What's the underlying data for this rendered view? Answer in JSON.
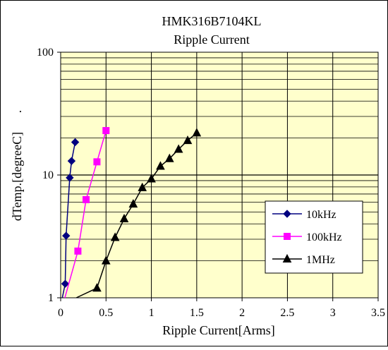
{
  "chart_data": {
    "type": "line",
    "title": "HMK316B7104KL",
    "subtitle": "Ripple Current",
    "xlabel": "Ripple Current[Arms]",
    "ylabel": "dTemp.[degreeC]",
    "ylabel_suffix": ".",
    "xlim": [
      0,
      3.5
    ],
    "ylim": [
      1,
      100
    ],
    "yscale": "log",
    "x_ticks": [
      "0",
      "0.5",
      "1",
      "1.5",
      "2",
      "2.5",
      "3",
      "3.5"
    ],
    "y_ticks": [
      "1",
      "10",
      "100"
    ],
    "grid": true,
    "plot_background": "#ffffcc",
    "legend_position": "bottom-right",
    "series": [
      {
        "name": "10kHz",
        "color": "#000080",
        "marker": "diamond",
        "x": [
          0.05,
          0.06,
          0.1,
          0.12,
          0.16
        ],
        "y": [
          1.3,
          3.2,
          9.5,
          13,
          18.5
        ]
      },
      {
        "name": "100kHz",
        "color": "#ff00ff",
        "marker": "square",
        "x": [
          0.19,
          0.28,
          0.4,
          0.5
        ],
        "y": [
          2.4,
          6.3,
          12.8,
          23
        ]
      },
      {
        "name": "1MHz",
        "color": "#000000",
        "marker": "triangle",
        "x": [
          0.4,
          0.5,
          0.6,
          0.7,
          0.8,
          0.9,
          1.0,
          1.1,
          1.2,
          1.3,
          1.4,
          1.5
        ],
        "y": [
          1.2,
          2.0,
          3.1,
          4.4,
          5.8,
          7.9,
          9.3,
          11.8,
          13.6,
          16.2,
          19.1,
          22
        ]
      }
    ]
  }
}
